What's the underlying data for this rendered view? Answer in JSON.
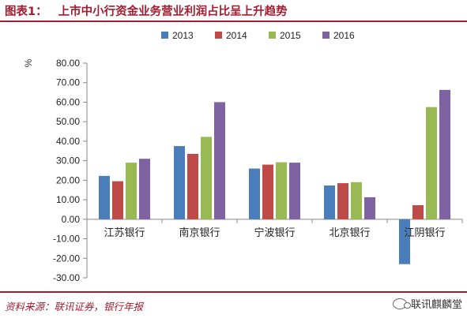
{
  "figure": {
    "label": "图表1：",
    "title": "上市中小行资金业务营业利润占比呈上升趋势"
  },
  "source": "资料来源：联讯证券，银行年报",
  "watermark": "联讯麒麟堂",
  "chart_data": {
    "type": "bar",
    "title": "上市中小行资金业务营业利润占比呈上升趋势",
    "ylabel": "%",
    "xlabel": "",
    "ylim": [
      -30,
      80
    ],
    "yticks": [
      "80.00",
      "70.00",
      "60.00",
      "50.00",
      "40.00",
      "30.00",
      "20.00",
      "10.00",
      "0.00",
      "-10.00",
      "-20.00",
      "-30.00"
    ],
    "categories": [
      "江苏银行",
      "南京银行",
      "宁波银行",
      "北京银行",
      "江阴银行"
    ],
    "series": [
      {
        "name": "2013",
        "color": "#4a7ebb",
        "values": [
          22.2,
          37.5,
          26.0,
          17.3,
          -23.0
        ]
      },
      {
        "name": "2014",
        "color": "#be4b48",
        "values": [
          19.5,
          33.5,
          28.0,
          18.5,
          7.2
        ]
      },
      {
        "name": "2015",
        "color": "#98b954",
        "values": [
          29.0,
          42.2,
          29.2,
          19.0,
          57.5
        ]
      },
      {
        "name": "2016",
        "color": "#7e62a1",
        "values": [
          31.0,
          60.0,
          29.0,
          11.3,
          66.3
        ]
      }
    ],
    "grid": false,
    "legend": "top-center"
  }
}
